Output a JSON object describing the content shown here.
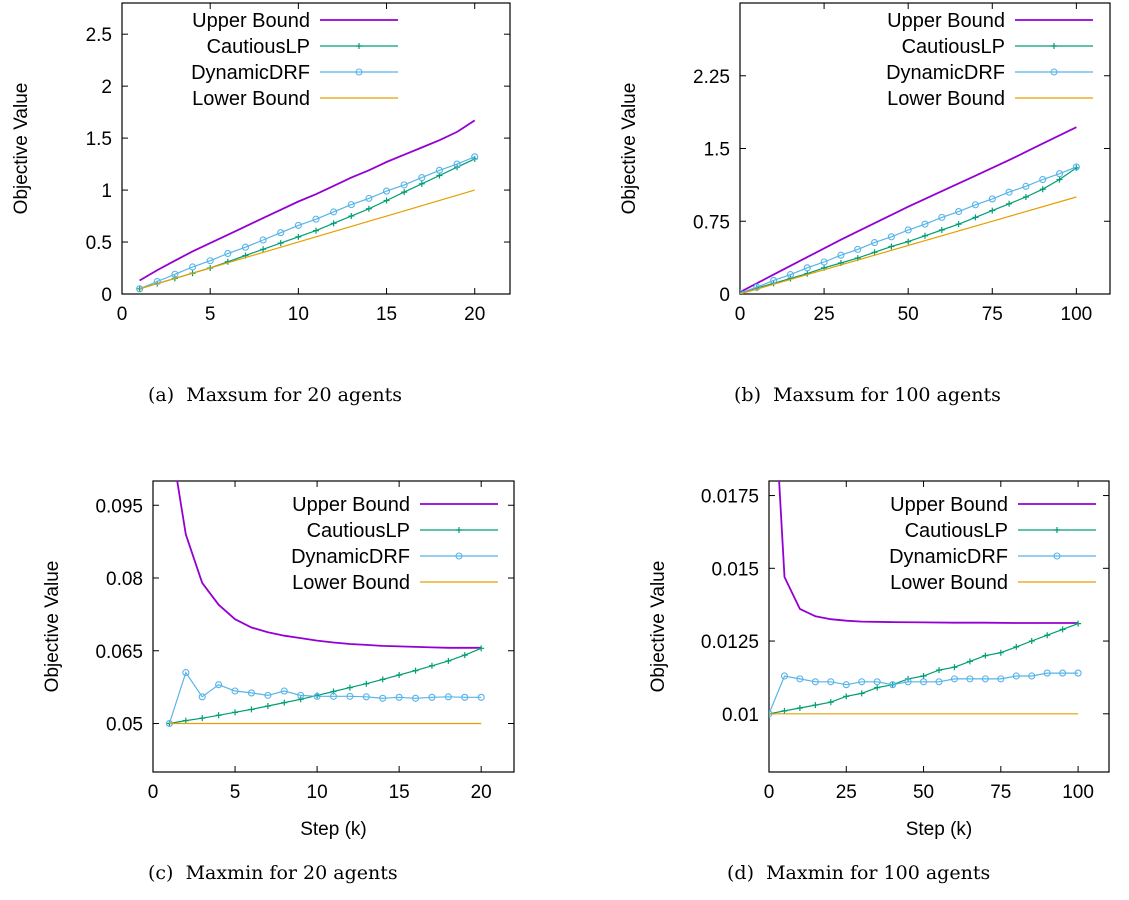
{
  "captions": [
    {
      "tag": "(a)",
      "text": "Maxsum for 20 agents"
    },
    {
      "tag": "(b)",
      "text": "Maxsum for 100 agents"
    },
    {
      "tag": "(c)",
      "text": "Maxmin for 20 agents"
    },
    {
      "tag": "(d)",
      "text": "Maxmin for 100 agents"
    }
  ],
  "colors": {
    "upper_bound": "#9400d3",
    "cautiouslp": "#009e73",
    "dynamicdrf": "#56b4e9",
    "lower_bound": "#e69f00"
  },
  "chart_data": [
    {
      "type": "line",
      "xlabel": "Step (k)",
      "ylabel": "Objective Value",
      "xlim": [
        0,
        22
      ],
      "ylim": [
        0,
        2.8
      ],
      "xticks": [
        0,
        5,
        10,
        15,
        20
      ],
      "yticks": [
        0,
        0.5,
        1,
        1.5,
        2,
        2.5
      ],
      "ytick_labels": [
        "0",
        "0.5",
        "1",
        "1.5",
        "2",
        "2.5"
      ],
      "grid": false,
      "legend": "top-left",
      "series": [
        {
          "name": "Upper Bound",
          "marker": "none",
          "x": [
            1,
            2,
            3,
            4,
            5,
            6,
            7,
            8,
            9,
            10,
            11,
            12,
            13,
            14,
            15,
            16,
            17,
            18,
            19,
            20
          ],
          "y": [
            0.13,
            0.23,
            0.32,
            0.41,
            0.49,
            0.57,
            0.65,
            0.73,
            0.81,
            0.89,
            0.96,
            1.04,
            1.12,
            1.19,
            1.27,
            1.34,
            1.41,
            1.48,
            1.56,
            1.67
          ]
        },
        {
          "name": "CautiousLP",
          "marker": "plus",
          "x": [
            1,
            2,
            3,
            4,
            5,
            6,
            7,
            8,
            9,
            10,
            11,
            12,
            13,
            14,
            15,
            16,
            17,
            18,
            19,
            20
          ],
          "y": [
            0.05,
            0.1,
            0.15,
            0.2,
            0.25,
            0.31,
            0.37,
            0.43,
            0.49,
            0.55,
            0.61,
            0.68,
            0.75,
            0.82,
            0.9,
            0.98,
            1.06,
            1.14,
            1.22,
            1.3
          ]
        },
        {
          "name": "DynamicDRF",
          "marker": "circle",
          "x": [
            1,
            2,
            3,
            4,
            5,
            6,
            7,
            8,
            9,
            10,
            11,
            12,
            13,
            14,
            15,
            16,
            17,
            18,
            19,
            20
          ],
          "y": [
            0.05,
            0.12,
            0.19,
            0.26,
            0.32,
            0.39,
            0.45,
            0.52,
            0.59,
            0.66,
            0.72,
            0.79,
            0.86,
            0.92,
            0.99,
            1.05,
            1.12,
            1.19,
            1.25,
            1.32
          ]
        },
        {
          "name": "Lower Bound",
          "marker": "none",
          "x": [
            1,
            20
          ],
          "y": [
            0.05,
            1.0
          ]
        }
      ]
    },
    {
      "type": "line",
      "xlabel": "Step (k)",
      "ylabel": "Objective Value",
      "xlim": [
        0,
        110
      ],
      "ylim": [
        0,
        3.0
      ],
      "xticks": [
        0,
        25,
        50,
        75,
        100
      ],
      "yticks": [
        0,
        0.75,
        1.5,
        2.25
      ],
      "ytick_labels": [
        "0",
        "0.75",
        "1.5",
        "2.25"
      ],
      "grid": false,
      "legend": "top-left",
      "series": [
        {
          "name": "Upper Bound",
          "marker": "none",
          "x": [
            0,
            10,
            20,
            30,
            40,
            50,
            60,
            70,
            80,
            90,
            100
          ],
          "y": [
            0.02,
            0.2,
            0.38,
            0.56,
            0.73,
            0.9,
            1.06,
            1.22,
            1.38,
            1.55,
            1.72
          ]
        },
        {
          "name": "CautiousLP",
          "marker": "plus",
          "x": [
            0,
            5,
            10,
            15,
            20,
            25,
            30,
            35,
            40,
            45,
            50,
            55,
            60,
            65,
            70,
            75,
            80,
            85,
            90,
            95,
            100
          ],
          "y": [
            0.01,
            0.06,
            0.11,
            0.16,
            0.21,
            0.27,
            0.32,
            0.37,
            0.43,
            0.49,
            0.54,
            0.6,
            0.66,
            0.72,
            0.79,
            0.86,
            0.93,
            1.0,
            1.08,
            1.18,
            1.3
          ]
        },
        {
          "name": "DynamicDRF",
          "marker": "circle",
          "x": [
            0,
            5,
            10,
            15,
            20,
            25,
            30,
            35,
            40,
            45,
            50,
            55,
            60,
            65,
            70,
            75,
            80,
            85,
            90,
            95,
            100
          ],
          "y": [
            0.01,
            0.07,
            0.14,
            0.2,
            0.27,
            0.33,
            0.4,
            0.46,
            0.53,
            0.59,
            0.66,
            0.72,
            0.79,
            0.85,
            0.92,
            0.98,
            1.05,
            1.11,
            1.18,
            1.24,
            1.31
          ]
        },
        {
          "name": "Lower Bound",
          "marker": "none",
          "x": [
            0,
            100
          ],
          "y": [
            0.0,
            1.0
          ]
        }
      ]
    },
    {
      "type": "line",
      "xlabel": "Step (k)",
      "ylabel": "Objective Value",
      "xlim": [
        0,
        22
      ],
      "ylim": [
        0.04,
        0.1
      ],
      "xticks": [
        0,
        5,
        10,
        15,
        20
      ],
      "yticks": [
        0.05,
        0.065,
        0.08,
        0.095
      ],
      "ytick_labels": [
        "0.05",
        "0.065",
        "0.08",
        "0.095"
      ],
      "grid": false,
      "legend": "top-right",
      "series": [
        {
          "name": "Upper Bound",
          "marker": "none",
          "x": [
            1,
            2,
            3,
            4,
            5,
            6,
            7,
            8,
            9,
            10,
            11,
            12,
            13,
            14,
            15,
            16,
            17,
            18,
            19,
            20
          ],
          "y": [
            0.11,
            0.089,
            0.079,
            0.0745,
            0.0715,
            0.0698,
            0.0688,
            0.0681,
            0.0676,
            0.0671,
            0.0667,
            0.0664,
            0.0662,
            0.066,
            0.0659,
            0.0658,
            0.0657,
            0.0656,
            0.0656,
            0.0656
          ]
        },
        {
          "name": "CautiousLP",
          "marker": "plus",
          "x": [
            1,
            2,
            3,
            4,
            5,
            6,
            7,
            8,
            9,
            10,
            11,
            12,
            13,
            14,
            15,
            16,
            17,
            18,
            19,
            20
          ],
          "y": [
            0.05,
            0.0506,
            0.0511,
            0.0517,
            0.0523,
            0.0529,
            0.0536,
            0.0543,
            0.055,
            0.0558,
            0.0566,
            0.0574,
            0.0582,
            0.0591,
            0.06,
            0.0609,
            0.0619,
            0.0629,
            0.0641,
            0.0655
          ]
        },
        {
          "name": "DynamicDRF",
          "marker": "circle",
          "x": [
            1,
            2,
            3,
            4,
            5,
            6,
            7,
            8,
            9,
            10,
            11,
            12,
            13,
            14,
            15,
            16,
            17,
            18,
            19,
            20
          ],
          "y": [
            0.05,
            0.0605,
            0.0555,
            0.058,
            0.0567,
            0.0563,
            0.0558,
            0.0567,
            0.0558,
            0.0556,
            0.0556,
            0.0556,
            0.0555,
            0.0552,
            0.0554,
            0.0552,
            0.0554,
            0.0555,
            0.0554,
            0.0554
          ]
        },
        {
          "name": "Lower Bound",
          "marker": "none",
          "x": [
            1,
            20
          ],
          "y": [
            0.05,
            0.05
          ]
        }
      ]
    },
    {
      "type": "line",
      "xlabel": "Step (k)",
      "ylabel": "Objective Value",
      "xlim": [
        0,
        110
      ],
      "ylim": [
        0.008,
        0.018
      ],
      "xticks": [
        0,
        25,
        50,
        75,
        100
      ],
      "yticks": [
        0.01,
        0.0125,
        0.015,
        0.0175
      ],
      "ytick_labels": [
        "0.01",
        "0.0125",
        "0.015",
        "0.0175"
      ],
      "grid": false,
      "legend": "top-right",
      "series": [
        {
          "name": "Upper Bound",
          "marker": "none",
          "x": [
            3,
            5,
            10,
            15,
            20,
            25,
            30,
            40,
            50,
            60,
            70,
            80,
            90,
            100
          ],
          "y": [
            0.0185,
            0.0147,
            0.0136,
            0.01335,
            0.01325,
            0.0132,
            0.01317,
            0.01315,
            0.01314,
            0.01313,
            0.01313,
            0.01312,
            0.01312,
            0.01312
          ]
        },
        {
          "name": "CautiousLP",
          "marker": "plus",
          "x": [
            0,
            5,
            10,
            15,
            20,
            25,
            30,
            35,
            40,
            45,
            50,
            55,
            60,
            65,
            70,
            75,
            80,
            85,
            90,
            95,
            100
          ],
          "y": [
            0.01,
            0.0101,
            0.0102,
            0.0103,
            0.0104,
            0.0106,
            0.0107,
            0.0109,
            0.011,
            0.0112,
            0.0113,
            0.0115,
            0.0116,
            0.0118,
            0.012,
            0.0121,
            0.0123,
            0.0125,
            0.0127,
            0.0129,
            0.0131
          ]
        },
        {
          "name": "DynamicDRF",
          "marker": "circle",
          "x": [
            0,
            5,
            10,
            15,
            20,
            25,
            30,
            35,
            40,
            45,
            50,
            55,
            60,
            65,
            70,
            75,
            80,
            85,
            90,
            95,
            100
          ],
          "y": [
            0.01,
            0.0113,
            0.0112,
            0.0111,
            0.0111,
            0.011,
            0.0111,
            0.0111,
            0.011,
            0.0111,
            0.0111,
            0.0111,
            0.0112,
            0.0112,
            0.0112,
            0.0112,
            0.0113,
            0.0113,
            0.0114,
            0.0114,
            0.0114
          ]
        },
        {
          "name": "Lower Bound",
          "marker": "none",
          "x": [
            0,
            100
          ],
          "y": [
            0.01,
            0.01
          ]
        }
      ]
    }
  ]
}
